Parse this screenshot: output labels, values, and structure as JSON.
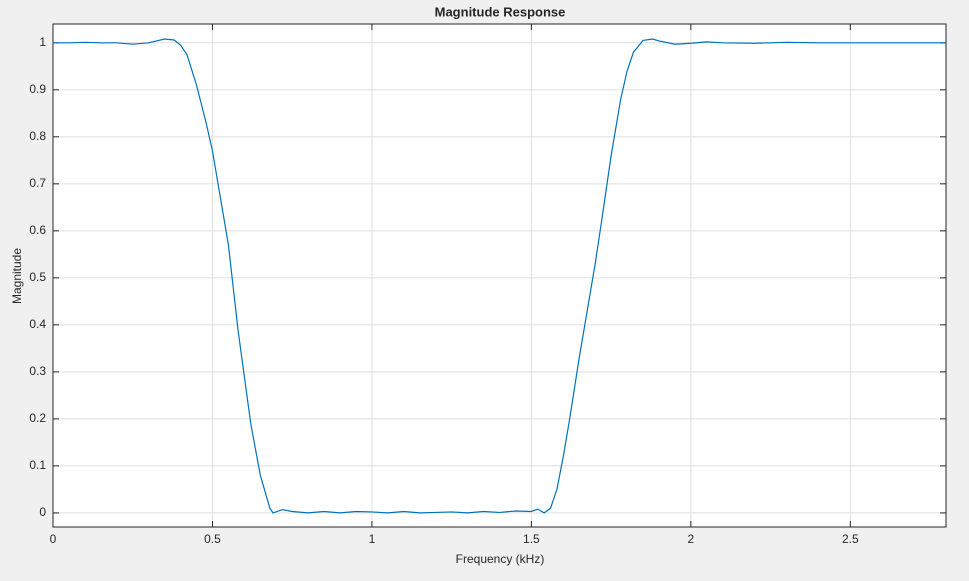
{
  "chart_data": {
    "type": "line",
    "title": "Magnitude Response",
    "x_label": "Frequency (kHz)",
    "y_label": "Magnitude",
    "x": [
      0,
      0.05,
      0.1,
      0.15,
      0.2,
      0.25,
      0.3,
      0.35,
      0.38,
      0.4,
      0.42,
      0.45,
      0.48,
      0.5,
      0.52,
      0.55,
      0.58,
      0.6,
      0.62,
      0.65,
      0.68,
      0.69,
      0.72,
      0.75,
      0.8,
      0.85,
      0.9,
      0.95,
      1.0,
      1.05,
      1.1,
      1.15,
      1.2,
      1.25,
      1.3,
      1.35,
      1.4,
      1.45,
      1.5,
      1.52,
      1.54,
      1.56,
      1.58,
      1.6,
      1.62,
      1.65,
      1.68,
      1.7,
      1.72,
      1.75,
      1.78,
      1.8,
      1.82,
      1.85,
      1.88,
      1.9,
      1.95,
      2.0,
      2.05,
      2.1,
      2.2,
      2.3,
      2.4,
      2.5,
      2.6,
      2.7,
      2.8
    ],
    "series": [
      {
        "name": "Magnitude",
        "color": "#0072bd",
        "values": [
          1.0,
          1.0,
          1.001,
          1.0,
          1.0,
          0.997,
          1.0,
          1.008,
          1.006,
          0.995,
          0.975,
          0.91,
          0.83,
          0.77,
          0.69,
          0.57,
          0.39,
          0.29,
          0.19,
          0.08,
          0.01,
          0.0,
          0.007,
          0.003,
          0.0,
          0.003,
          0.0,
          0.003,
          0.002,
          0.0,
          0.003,
          0.0,
          0.001,
          0.002,
          0.0,
          0.003,
          0.001,
          0.004,
          0.003,
          0.008,
          0.0,
          0.01,
          0.05,
          0.12,
          0.2,
          0.33,
          0.45,
          0.53,
          0.62,
          0.76,
          0.88,
          0.94,
          0.98,
          1.005,
          1.008,
          1.004,
          0.997,
          0.999,
          1.002,
          1.0,
          0.999,
          1.001,
          1.0,
          1.0,
          1.0,
          1.0,
          1.0
        ]
      }
    ],
    "xlim": [
      0,
      2.8
    ],
    "ylim": [
      -0.03,
      1.04
    ],
    "xticks": [
      0,
      0.5,
      1,
      1.5,
      2,
      2.5
    ],
    "yticks": [
      0,
      0.1,
      0.2,
      0.3,
      0.4,
      0.5,
      0.6,
      0.7,
      0.8,
      0.9,
      1
    ],
    "grid": true
  }
}
